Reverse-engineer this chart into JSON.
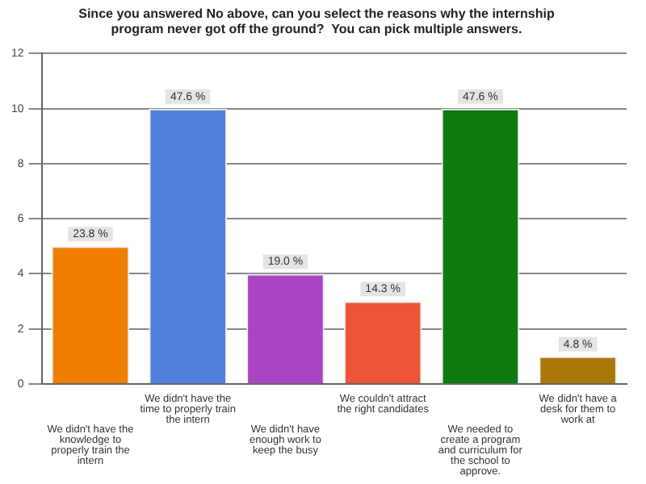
{
  "chart_data": {
    "type": "bar",
    "title": "Since you answered No above, can you select the reasons why the internship program never got off the ground?  You can pick multiple answers.",
    "categories": [
      "We didn't have the knowledge to properly train the intern",
      "We didn't have the time to properly train the intern",
      "We didn't have enough work to keep the busy",
      "We couldn't attract the right candidates",
      "We needed to create a program and curriculum for the school to approve.",
      "We didn't have a desk for them to work at"
    ],
    "values": [
      5,
      10,
      4,
      3,
      10,
      1
    ],
    "colors": [
      "#f07f00",
      "#4f80dc",
      "#aa44c4",
      "#ee5538",
      "#0d7a10",
      "#aa7808"
    ],
    "annotations": [
      {
        "text": "23.8 %",
        "x": "We didn't have the knowledge to properly train the intern",
        "y": 5
      },
      {
        "text": "47.6 %",
        "x": "We didn't have the time to properly train the intern",
        "y": 10
      },
      {
        "text": "19.0 %",
        "x": "We didn't have enough work to keep the busy",
        "y": 4
      },
      {
        "text": "14.3 %",
        "x": "We couldn't attract the right candidates",
        "y": 3
      },
      {
        "text": "47.6 %",
        "x": "We needed to create a program and curriculum for the school to approve.",
        "y": 10
      },
      {
        "text": "4.8 %",
        "x": "We didn't have a desk for them to work at",
        "y": 1
      }
    ],
    "ylim": [
      0,
      12
    ],
    "yticks": [
      0,
      2,
      4,
      6,
      8,
      10,
      12
    ],
    "grid": "y"
  }
}
